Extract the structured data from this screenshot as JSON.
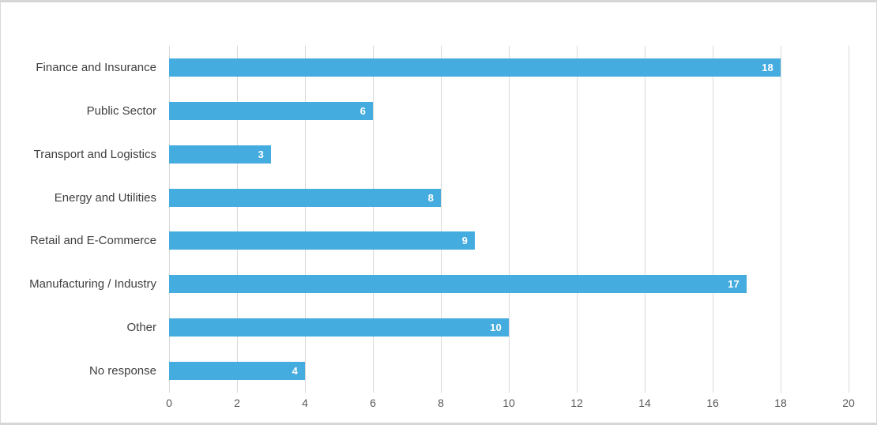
{
  "frame": {
    "background": "#ffffff",
    "border_color": "#d6d6d6"
  },
  "chart_data": {
    "type": "bar",
    "orientation": "horizontal",
    "title": "",
    "xlabel": "",
    "ylabel": "",
    "categories": [
      "Finance and Insurance",
      "Public Sector",
      "Transport and Logistics",
      "Energy and Utilities",
      "Retail and E-Commerce",
      "Manufacturing / Industry",
      "Other",
      "No response"
    ],
    "values": [
      18,
      6,
      3,
      8,
      9,
      17,
      10,
      4
    ],
    "value_labels": [
      "18",
      "6",
      "3",
      "8",
      "9",
      "17",
      "10",
      "4"
    ],
    "xlim": [
      0,
      20
    ],
    "xticks": [
      0,
      2,
      4,
      6,
      8,
      10,
      12,
      14,
      16,
      18,
      20
    ],
    "xtick_labels": [
      "0",
      "2",
      "4",
      "6",
      "8",
      "10",
      "12",
      "14",
      "16",
      "18",
      "20"
    ],
    "grid": true,
    "legend": false,
    "bar_color": "#45acdf",
    "value_label_color": "#ffffff",
    "category_label_color": "#404040",
    "tick_label_color": "#595959",
    "gridline_color": "#d9d9d9"
  }
}
